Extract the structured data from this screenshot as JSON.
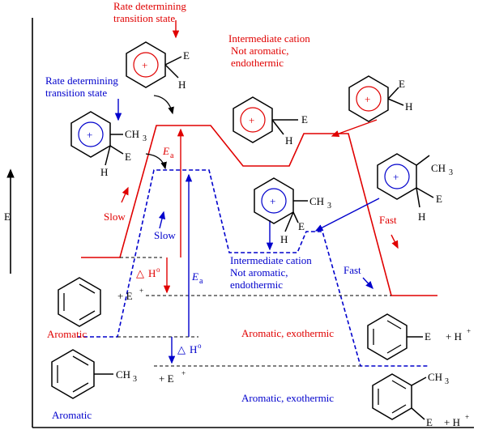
{
  "colors": {
    "red": "#e00000",
    "blue": "#0000cc",
    "black": "#000000"
  },
  "axis": {
    "y_label": "E"
  },
  "red_path": {
    "rds_label_1": "Rate determining",
    "rds_label_2": "transition state",
    "intermediate_1": "Intermediate cation",
    "intermediate_2": "Not aromatic,",
    "intermediate_3": "endothermic",
    "ea": "E",
    "ea_sub": "a",
    "slow": "Slow",
    "fast": "Fast",
    "delta_h": "H",
    "delta_h_sup": "o",
    "reactant_label": "Aromatic",
    "product_label": "Aromatic, exothermic",
    "reagent": "+  E",
    "reagent_sup": "+",
    "product_sub": "E",
    "product_byproduct": "+  H",
    "product_byproduct_sup": "+",
    "sigma_E": "E",
    "sigma_H": "H"
  },
  "blue_path": {
    "rds_label_1": "Rate determining",
    "rds_label_2": "transition state",
    "intermediate_1": "Intermediate cation",
    "intermediate_2": "Not aromatic,",
    "intermediate_3": "endothermic",
    "ea": "E",
    "ea_sub": "a",
    "slow": "Slow",
    "fast": "Fast",
    "delta_h": "H",
    "delta_h_sup": "o",
    "reactant_label": "Aromatic",
    "product_label": "Aromatic, exothermic",
    "reagent": "+  E",
    "reagent_sup": "+",
    "methyl": "CH",
    "methyl_sub": "3",
    "product_sub": "E",
    "product_byproduct": "+  H",
    "product_byproduct_sup": "+",
    "sigma_E": "E",
    "sigma_H": "H"
  },
  "delta_symbol": "△",
  "plus_symbol": "+"
}
